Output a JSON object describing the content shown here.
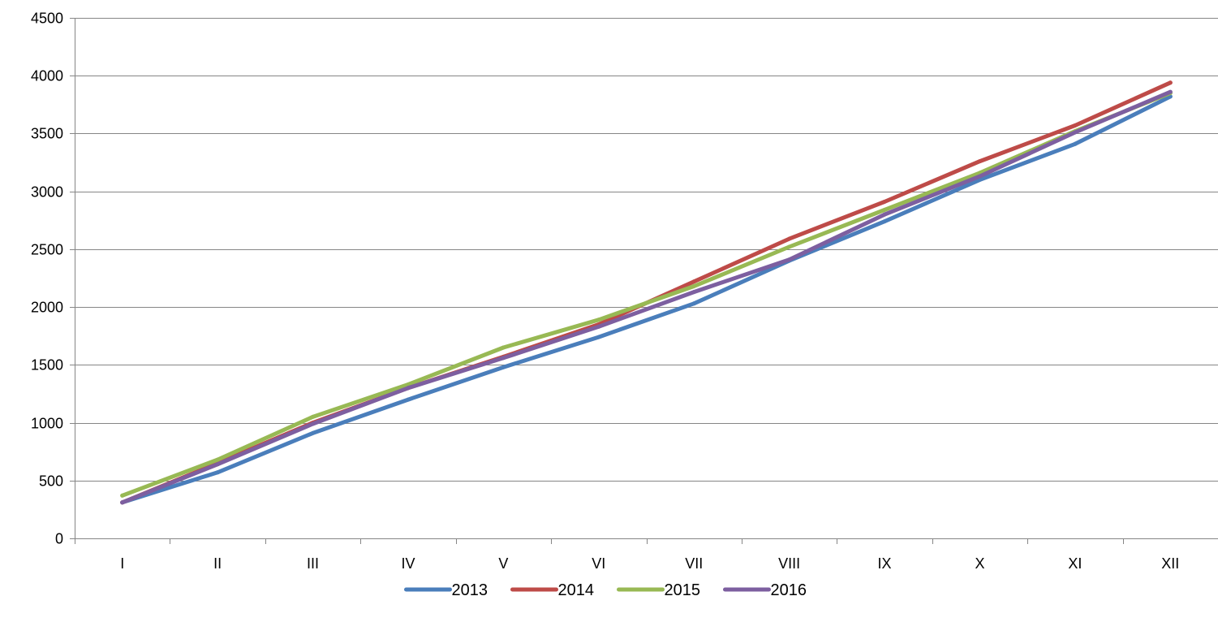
{
  "chart_data": {
    "type": "line",
    "title": "",
    "xlabel": "",
    "ylabel": "",
    "categories": [
      "I",
      "II",
      "III",
      "IV",
      "V",
      "VI",
      "VII",
      "VIII",
      "IX",
      "X",
      "XI",
      "XII"
    ],
    "ylim": [
      0,
      4500
    ],
    "yticks": [
      0,
      500,
      1000,
      1500,
      2000,
      2500,
      3000,
      3500,
      4000,
      4500
    ],
    "grid": true,
    "legend_position": "bottom",
    "series": [
      {
        "name": "2013",
        "color": "#4A7EBB",
        "values": [
          310,
          570,
          910,
          1200,
          1480,
          1740,
          2030,
          2400,
          2740,
          3100,
          3410,
          3820
        ]
      },
      {
        "name": "2014",
        "color": "#BE4B48",
        "values": [
          310,
          650,
          1000,
          1300,
          1570,
          1850,
          2220,
          2590,
          2910,
          3260,
          3570,
          3940
        ]
      },
      {
        "name": "2015",
        "color": "#98B954",
        "values": [
          370,
          680,
          1050,
          1330,
          1650,
          1890,
          2180,
          2520,
          2840,
          3160,
          3520,
          3850
        ]
      },
      {
        "name": "2016",
        "color": "#7D5FA0",
        "values": [
          310,
          640,
          990,
          1300,
          1560,
          1830,
          2130,
          2410,
          2800,
          3130,
          3510,
          3860
        ]
      }
    ]
  }
}
